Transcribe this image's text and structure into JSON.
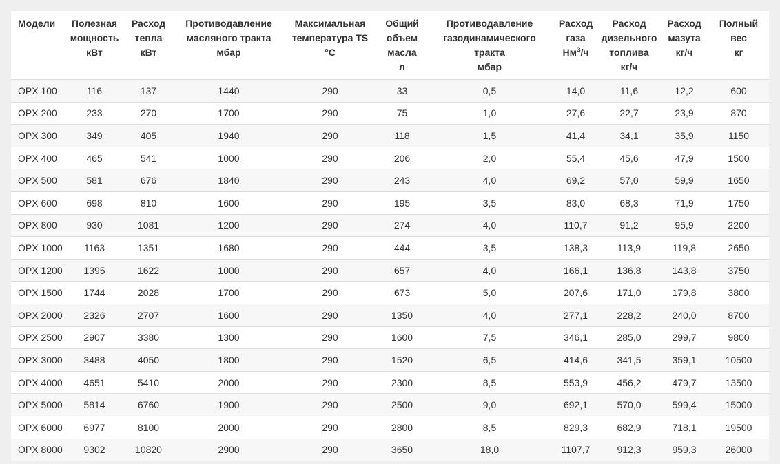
{
  "table": {
    "headers": [
      [
        "Модели"
      ],
      [
        "Полезная",
        "мощность",
        "кВт"
      ],
      [
        "Расход",
        "тепла",
        "кВт"
      ],
      [
        "Противодавление",
        "масляного тракта",
        "мбар"
      ],
      [
        "Максимальная",
        "температура TS",
        "°C"
      ],
      [
        "Общий",
        "объем",
        "масла",
        "л"
      ],
      [
        "Противодавление",
        "газодинамического",
        "тракта",
        "мбар"
      ],
      [
        "Расход",
        "газа",
        "Нм",
        "3",
        "/ч"
      ],
      [
        "Расход",
        "дизельного",
        "топлива",
        "кг/ч"
      ],
      [
        "Расход",
        "мазута",
        "кг/ч"
      ],
      [
        "Полный",
        "вес",
        "кг"
      ]
    ],
    "rows": [
      [
        "OPX 100",
        "116",
        "137",
        "1440",
        "290",
        "33",
        "0,5",
        "14,0",
        "11,6",
        "12,2",
        "600"
      ],
      [
        "OPX 200",
        "233",
        "270",
        "1700",
        "290",
        "75",
        "1,0",
        "27,6",
        "22,7",
        "23,9",
        "870"
      ],
      [
        "OPX 300",
        "349",
        "405",
        "1940",
        "290",
        "118",
        "1,5",
        "41,4",
        "34,1",
        "35,9",
        "1150"
      ],
      [
        "OPX 400",
        "465",
        "541",
        "1000",
        "290",
        "206",
        "2,0",
        "55,4",
        "45,6",
        "47,9",
        "1500"
      ],
      [
        "OPX 500",
        "581",
        "676",
        "1840",
        "290",
        "243",
        "4,0",
        "69,2",
        "57,0",
        "59,9",
        "1650"
      ],
      [
        "OPX 600",
        "698",
        "810",
        "1600",
        "290",
        "195",
        "3,5",
        "83,0",
        "68,3",
        "71,9",
        "1750"
      ],
      [
        "OPX 800",
        "930",
        "1081",
        "1200",
        "290",
        "274",
        "4,0",
        "110,7",
        "91,2",
        "95,9",
        "2200"
      ],
      [
        "OPX 1000",
        "1163",
        "1351",
        "1680",
        "290",
        "444",
        "3,5",
        "138,3",
        "113,9",
        "119,8",
        "2650"
      ],
      [
        "OPX 1200",
        "1395",
        "1622",
        "1000",
        "290",
        "657",
        "4,0",
        "166,1",
        "136,8",
        "143,8",
        "3750"
      ],
      [
        "OPX 1500",
        "1744",
        "2028",
        "1700",
        "290",
        "673",
        "5,0",
        "207,6",
        "171,0",
        "179,8",
        "3800"
      ],
      [
        "OPX 2000",
        "2326",
        "2707",
        "1600",
        "290",
        "1350",
        "4,0",
        "277,1",
        "228,2",
        "240,0",
        "8700"
      ],
      [
        "OPX 2500",
        "2907",
        "3380",
        "1300",
        "290",
        "1600",
        "7,5",
        "346,1",
        "285,0",
        "299,7",
        "9800"
      ],
      [
        "OPX 3000",
        "3488",
        "4050",
        "1800",
        "290",
        "1520",
        "6,5",
        "414,6",
        "341,5",
        "359,1",
        "10500"
      ],
      [
        "OPX 4000",
        "4651",
        "5410",
        "2000",
        "290",
        "2300",
        "8,5",
        "553,9",
        "456,2",
        "479,7",
        "13500"
      ],
      [
        "OPX 5000",
        "5814",
        "6760",
        "1900",
        "290",
        "2500",
        "9,0",
        "692,1",
        "570,0",
        "599,4",
        "15000"
      ],
      [
        "OPX 6000",
        "6977",
        "8100",
        "2000",
        "290",
        "2800",
        "8,5",
        "829,3",
        "682,9",
        "718,1",
        "19500"
      ],
      [
        "OPX 8000",
        "9302",
        "10820",
        "2900",
        "290",
        "3650",
        "18,0",
        "1107,7",
        "912,3",
        "959,3",
        "26000"
      ]
    ]
  }
}
